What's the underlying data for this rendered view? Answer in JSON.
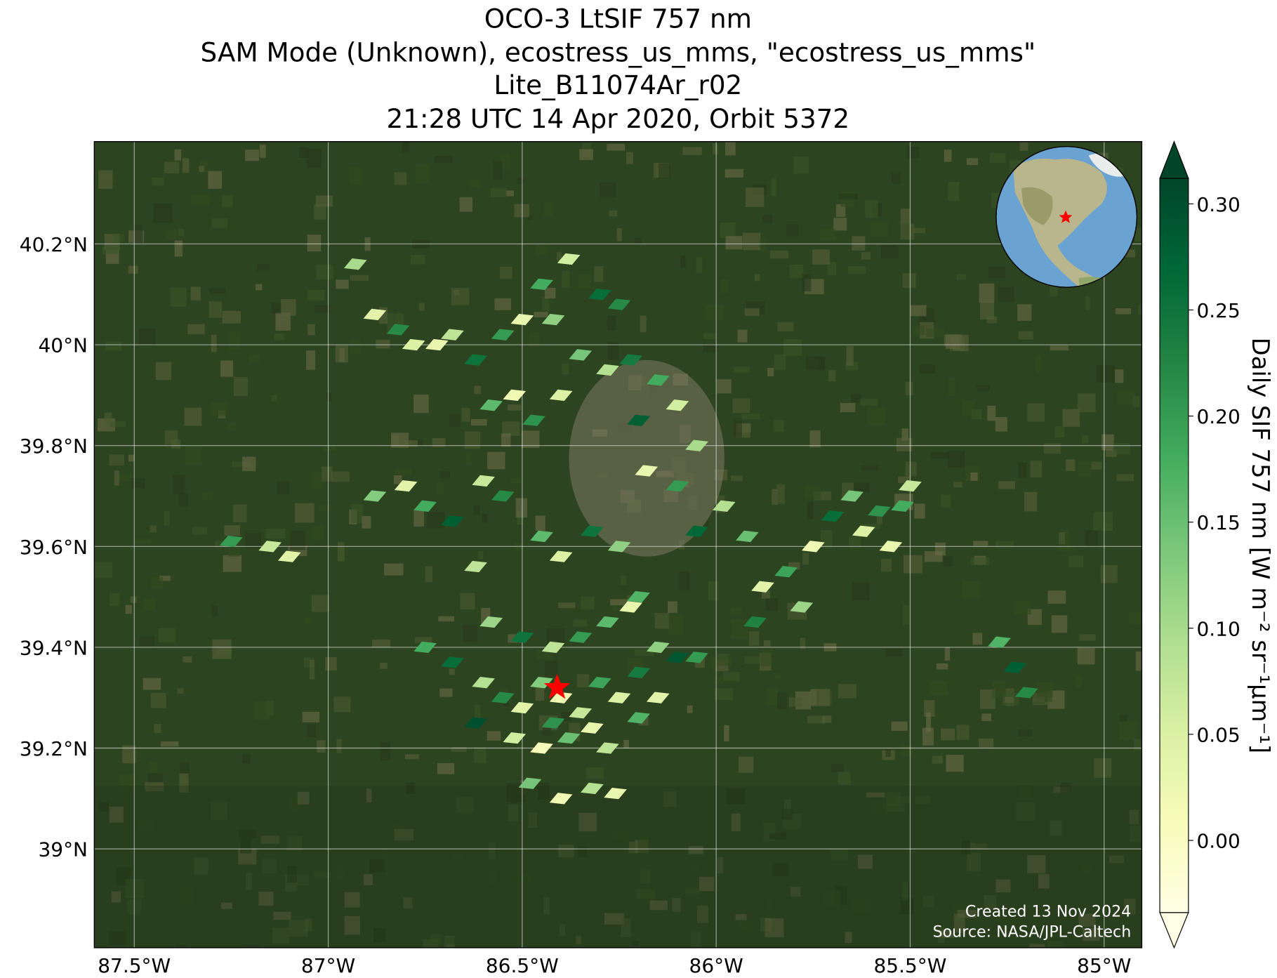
{
  "chart_data": {
    "type": "map",
    "title": [
      "OCO-3 LtSIF 757 nm",
      "SAM Mode (Unknown), ecostress_us_mms, \"ecostress_us_mms\"",
      "Lite_B11074Ar_r02",
      "21:28 UTC 14 Apr 2020, Orbit 5372"
    ],
    "xlim": [
      -87.603,
      -84.903
    ],
    "ylim": [
      38.804,
      40.403
    ],
    "xticks": [
      {
        "value": -87.5,
        "label": "87.5°W"
      },
      {
        "value": -87,
        "label": "87°W"
      },
      {
        "value": -86.5,
        "label": "86.5°W"
      },
      {
        "value": -86,
        "label": "86°W"
      },
      {
        "value": -85.5,
        "label": "85.5°W"
      },
      {
        "value": -85,
        "label": "85°W"
      }
    ],
    "yticks": [
      {
        "value": 39,
        "label": "39°N"
      },
      {
        "value": 39.2,
        "label": "39.2°N"
      },
      {
        "value": 39.4,
        "label": "39.4°N"
      },
      {
        "value": 39.6,
        "label": "39.6°N"
      },
      {
        "value": 39.8,
        "label": "39.8°N"
      },
      {
        "value": 40,
        "label": "40°N"
      },
      {
        "value": 40.2,
        "label": "40.2°N"
      }
    ],
    "grid": true,
    "colorbar": {
      "label": "Daily SIF 757 nm [W m⁻² sr⁻¹μm⁻¹]",
      "lim": [
        -0.034,
        0.312
      ],
      "ticks": [
        {
          "value": 0,
          "label": "0.00"
        },
        {
          "value": 0.05,
          "label": "0.05"
        },
        {
          "value": 0.1,
          "label": "0.10"
        },
        {
          "value": 0.15,
          "label": "0.15"
        },
        {
          "value": 0.2,
          "label": "0.20"
        },
        {
          "value": 0.25,
          "label": "0.25"
        },
        {
          "value": 0.3,
          "label": "0.30"
        }
      ],
      "colormap": [
        "#ffffe5",
        "#f7fcb9",
        "#d9f0a3",
        "#addd8e",
        "#78c679",
        "#41ab5d",
        "#238443",
        "#006837",
        "#004529"
      ]
    },
    "target": {
      "lon": -86.41,
      "lat": 39.32,
      "color": "#ff0000"
    },
    "soundings": {
      "lon": [
        -86.93,
        -86.88,
        -86.82,
        -86.78,
        -86.72,
        -86.68,
        -86.62,
        -86.55,
        -86.5,
        -86.45,
        -86.42,
        -86.38,
        -86.3,
        -86.25,
        -86.35,
        -86.28,
        -86.22,
        -86.52,
        -86.58,
        -86.47,
        -86.4,
        -86.15,
        -86.1,
        -86.2,
        -86.05,
        -86.88,
        -86.8,
        -86.75,
        -86.68,
        -86.6,
        -86.55,
        -86.45,
        -86.4,
        -86.32,
        -86.25,
        -86.18,
        -86.1,
        -86.05,
        -85.98,
        -85.92,
        -85.88,
        -85.82,
        -85.9,
        -85.78,
        -85.75,
        -86.2,
        -86.62,
        -85.7,
        -85.65,
        -85.62,
        -85.58,
        -85.55,
        -85.52,
        -85.5,
        -87.25,
        -87.15,
        -87.1,
        -85.27,
        -85.23,
        -85.2,
        -86.75,
        -86.68,
        -86.6,
        -86.55,
        -86.5,
        -86.45,
        -86.4,
        -86.35,
        -86.3,
        -86.25,
        -86.2,
        -86.15,
        -86.1,
        -86.28,
        -86.22,
        -86.35,
        -86.42,
        -86.5,
        -86.58,
        -86.62,
        -86.52,
        -86.45,
        -86.38,
        -86.32,
        -86.42,
        -86.28,
        -86.2,
        -86.15,
        -86.4,
        -86.32,
        -86.26,
        -86.48,
        -86.05
      ],
      "lat": [
        40.16,
        40.06,
        40.03,
        40.0,
        40.0,
        40.02,
        39.97,
        40.02,
        40.05,
        40.12,
        40.05,
        40.17,
        40.1,
        40.08,
        39.98,
        39.95,
        39.97,
        39.9,
        39.88,
        39.85,
        39.9,
        39.93,
        39.88,
        39.85,
        39.8,
        39.7,
        39.72,
        39.68,
        39.65,
        39.73,
        39.7,
        39.62,
        39.58,
        39.63,
        39.6,
        39.75,
        39.72,
        39.63,
        39.68,
        39.62,
        39.52,
        39.55,
        39.45,
        39.48,
        39.6,
        39.5,
        39.56,
        39.66,
        39.7,
        39.63,
        39.67,
        39.6,
        39.68,
        39.72,
        39.61,
        39.6,
        39.58,
        39.41,
        39.36,
        39.31,
        39.4,
        39.37,
        39.33,
        39.3,
        39.28,
        39.33,
        39.3,
        39.27,
        39.33,
        39.3,
        39.35,
        39.4,
        39.38,
        39.45,
        39.48,
        39.42,
        39.4,
        39.42,
        39.45,
        39.25,
        39.22,
        39.2,
        39.22,
        39.24,
        39.25,
        39.2,
        39.26,
        39.3,
        39.1,
        39.12,
        39.11,
        39.13,
        39.38
      ],
      "values": [
        0.1,
        0.04,
        0.22,
        0.05,
        0.03,
        0.08,
        0.25,
        0.2,
        0.03,
        0.18,
        0.12,
        0.06,
        0.26,
        0.22,
        0.14,
        0.09,
        0.24,
        0.02,
        0.16,
        0.21,
        0.05,
        0.18,
        0.06,
        0.28,
        0.1,
        0.13,
        0.04,
        0.18,
        0.28,
        0.07,
        0.22,
        0.16,
        0.05,
        0.25,
        0.12,
        0.03,
        0.2,
        0.27,
        0.09,
        0.15,
        0.04,
        0.19,
        0.23,
        0.11,
        0.02,
        0.17,
        0.08,
        0.26,
        0.14,
        0.05,
        0.21,
        0.03,
        0.18,
        0.07,
        0.2,
        0.07,
        0.04,
        0.17,
        0.28,
        0.22,
        0.18,
        0.26,
        0.09,
        0.22,
        0.04,
        0.13,
        0.02,
        0.07,
        0.19,
        0.05,
        0.24,
        0.12,
        0.29,
        0.16,
        0.03,
        0.2,
        0.08,
        0.25,
        0.11,
        0.3,
        0.06,
        0.01,
        0.15,
        0.03,
        0.21,
        0.08,
        0.17,
        0.04,
        0.02,
        0.09,
        0.03,
        0.14,
        0.2
      ]
    },
    "annotations": [
      "Created 13 Nov 2024",
      "Source: NASA/JPL-Caltech"
    ]
  }
}
